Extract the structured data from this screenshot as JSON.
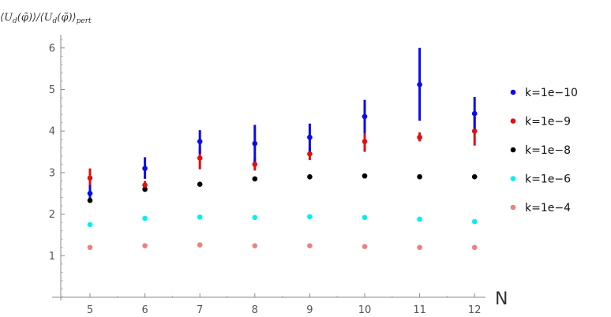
{
  "chart_data": {
    "type": "scatter",
    "title": "",
    "xlabel": "N",
    "ylabel": "⟨U_d(φ̃)⟩/⟨U_d(φ̃)⟩_pert",
    "x": [
      5,
      6,
      7,
      8,
      9,
      10,
      11,
      12
    ],
    "xlim": [
      4.4,
      12.35
    ],
    "ylim": [
      0,
      6.3
    ],
    "xticks": [
      "5",
      "6",
      "7",
      "8",
      "9",
      "10",
      "11",
      "12"
    ],
    "yticks": [
      "1",
      "2",
      "3",
      "4",
      "5",
      "6"
    ],
    "grid": false,
    "legend_position": "right",
    "series": [
      {
        "name": "k=1e−10",
        "color": "#0a0af0",
        "values": [
          2.5,
          3.1,
          3.75,
          3.7,
          3.85,
          4.35,
          5.12,
          4.42
        ],
        "err_low": [
          2.35,
          2.85,
          3.45,
          3.25,
          3.5,
          3.95,
          4.25,
          4.05
        ],
        "err_high": [
          2.7,
          3.37,
          4.02,
          4.15,
          4.18,
          4.75,
          6.0,
          4.82
        ]
      },
      {
        "name": "k=1e−9",
        "color": "#e01010",
        "values": [
          2.87,
          2.7,
          3.35,
          3.2,
          3.45,
          3.75,
          3.85,
          4.0
        ],
        "err_low": [
          2.6,
          2.58,
          3.08,
          3.05,
          3.3,
          3.5,
          3.75,
          3.65
        ],
        "err_high": [
          3.1,
          2.8,
          3.6,
          3.35,
          3.6,
          4.0,
          3.97,
          4.35
        ]
      },
      {
        "name": "k=1e−8",
        "color": "#000000",
        "values": [
          2.33,
          2.6,
          2.72,
          2.85,
          2.9,
          2.92,
          2.9,
          2.9
        ],
        "err_low": [
          2.28,
          2.54,
          2.68,
          2.8,
          2.84,
          2.86,
          2.85,
          2.86
        ],
        "err_high": [
          2.4,
          2.66,
          2.76,
          2.9,
          2.95,
          2.98,
          2.95,
          2.94
        ]
      },
      {
        "name": "k=1e−6",
        "color": "#00f0f0",
        "values": [
          1.75,
          1.9,
          1.93,
          1.92,
          1.94,
          1.92,
          1.88,
          1.82
        ],
        "err_low": [
          1.75,
          1.9,
          1.93,
          1.92,
          1.94,
          1.92,
          1.88,
          1.82
        ],
        "err_high": [
          1.75,
          1.9,
          1.93,
          1.92,
          1.94,
          1.92,
          1.88,
          1.82
        ]
      },
      {
        "name": "k=1e−4",
        "color": "#f08080",
        "values": [
          1.2,
          1.24,
          1.26,
          1.24,
          1.24,
          1.22,
          1.2,
          1.2
        ],
        "err_low": [
          1.2,
          1.24,
          1.26,
          1.24,
          1.24,
          1.22,
          1.2,
          1.2
        ],
        "err_high": [
          1.2,
          1.24,
          1.26,
          1.24,
          1.24,
          1.22,
          1.2,
          1.2
        ]
      }
    ]
  }
}
